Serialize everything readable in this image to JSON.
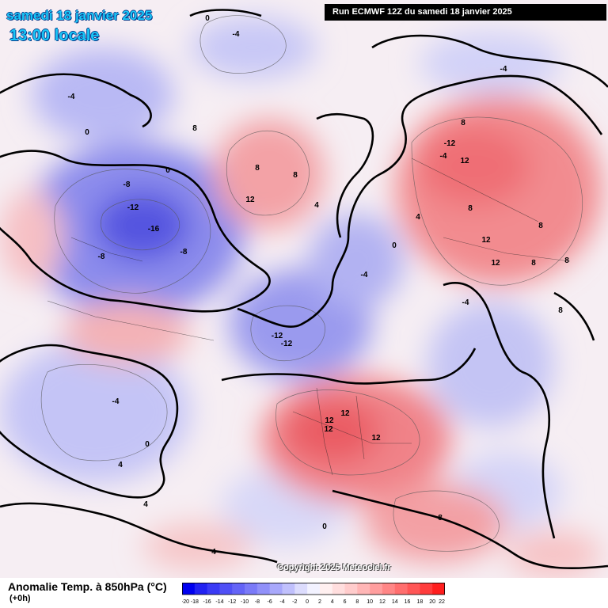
{
  "header": {
    "date": "samedi 18 janvier 2025",
    "time": "13:00 locale",
    "run": "Run ECMWF 12Z du samedi 18 janvier 2025"
  },
  "copyright": "Copyright 2025 Meteociel.fr",
  "legend": {
    "title": "Anomalie Temp. à 850hPa (°C)",
    "subtitle": "(+0h)",
    "ticks": [
      "-20",
      "-18",
      "-16",
      "-14",
      "-12",
      "-10",
      "-8",
      "-6",
      "-4",
      "-2",
      "0",
      "2",
      "4",
      "6",
      "8",
      "10",
      "12",
      "14",
      "16",
      "18",
      "20",
      "22"
    ],
    "colors": [
      "#0000f0",
      "#2222f2",
      "#3a3af5",
      "#5050f6",
      "#6464f7",
      "#7a7af8",
      "#9090f9",
      "#a8a8fb",
      "#c0c0fc",
      "#dcdcfd",
      "#f2f2ff",
      "#fff0f0",
      "#ffdede",
      "#ffcccc",
      "#ffb6b6",
      "#ff9e9e",
      "#ff8686",
      "#ff6e6e",
      "#ff5656",
      "#ff3c3c",
      "#ff1e1e"
    ]
  },
  "map_labels": [
    "0",
    "-4",
    "-4",
    "-4",
    "-4",
    "8",
    "8",
    "8",
    "8",
    "8",
    "8",
    "8",
    "-12",
    "-12",
    "-16",
    "-8",
    "-8",
    "-8",
    "-12",
    "-12",
    "12",
    "12",
    "12",
    "12",
    "12",
    "12",
    "12",
    "12",
    "8",
    "8",
    "8",
    "4",
    "4",
    "4",
    "0",
    "0",
    "0",
    "0",
    "0",
    "-4",
    "-4",
    "-4",
    "4",
    "4"
  ]
}
